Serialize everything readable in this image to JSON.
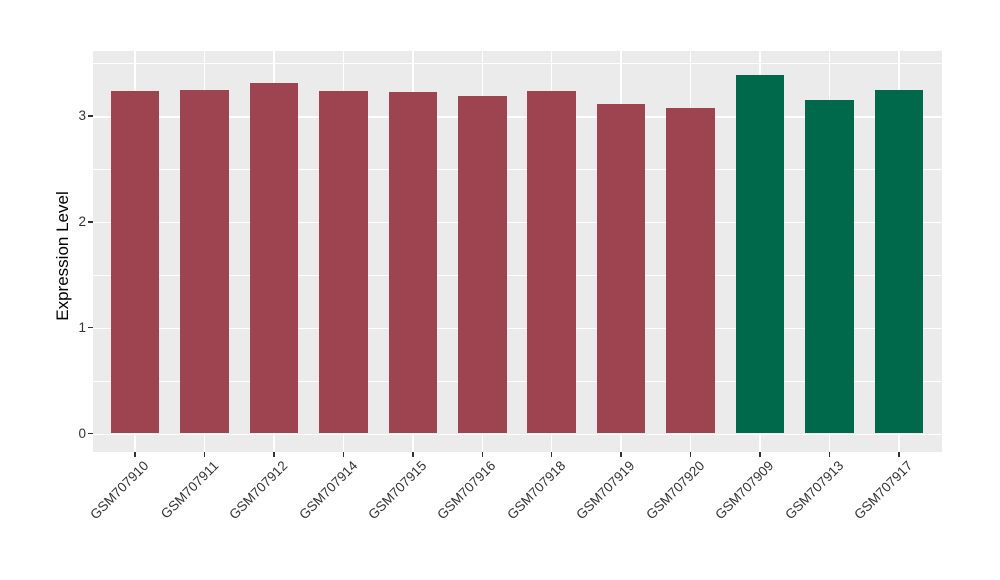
{
  "chart_data": {
    "type": "bar",
    "title": "",
    "xlabel": "",
    "ylabel": "Expression Level",
    "yticks": [
      0,
      1,
      2,
      3
    ],
    "minor_gridlines": [
      0.5,
      1.5,
      2.5,
      3.5
    ],
    "ylim": [
      -0.18,
      3.62
    ],
    "grid": "on",
    "legend": "none",
    "panel_background": "#EBEBEB",
    "gridline_color": "#FFFFFF",
    "tick_color": "#333333",
    "axis_text_color": "#333333",
    "group_colors": {
      "group1": "#9E4350",
      "group2": "#00694C"
    },
    "categories": [
      "GSM707910",
      "GSM707911",
      "GSM707912",
      "GSM707914",
      "GSM707915",
      "GSM707916",
      "GSM707918",
      "GSM707919",
      "GSM707920",
      "GSM707909",
      "GSM707913",
      "GSM707917"
    ],
    "bars": [
      {
        "label": "GSM707910",
        "value": 3.24,
        "group": "group1"
      },
      {
        "label": "GSM707911",
        "value": 3.25,
        "group": "group1"
      },
      {
        "label": "GSM707912",
        "value": 3.31,
        "group": "group1"
      },
      {
        "label": "GSM707914",
        "value": 3.24,
        "group": "group1"
      },
      {
        "label": "GSM707915",
        "value": 3.23,
        "group": "group1"
      },
      {
        "label": "GSM707916",
        "value": 3.19,
        "group": "group1"
      },
      {
        "label": "GSM707918",
        "value": 3.24,
        "group": "group1"
      },
      {
        "label": "GSM707919",
        "value": 3.11,
        "group": "group1"
      },
      {
        "label": "GSM707920",
        "value": 3.08,
        "group": "group1"
      },
      {
        "label": "GSM707909",
        "value": 3.39,
        "group": "group2"
      },
      {
        "label": "GSM707913",
        "value": 3.15,
        "group": "group2"
      },
      {
        "label": "GSM707917",
        "value": 3.25,
        "group": "group2"
      }
    ]
  }
}
